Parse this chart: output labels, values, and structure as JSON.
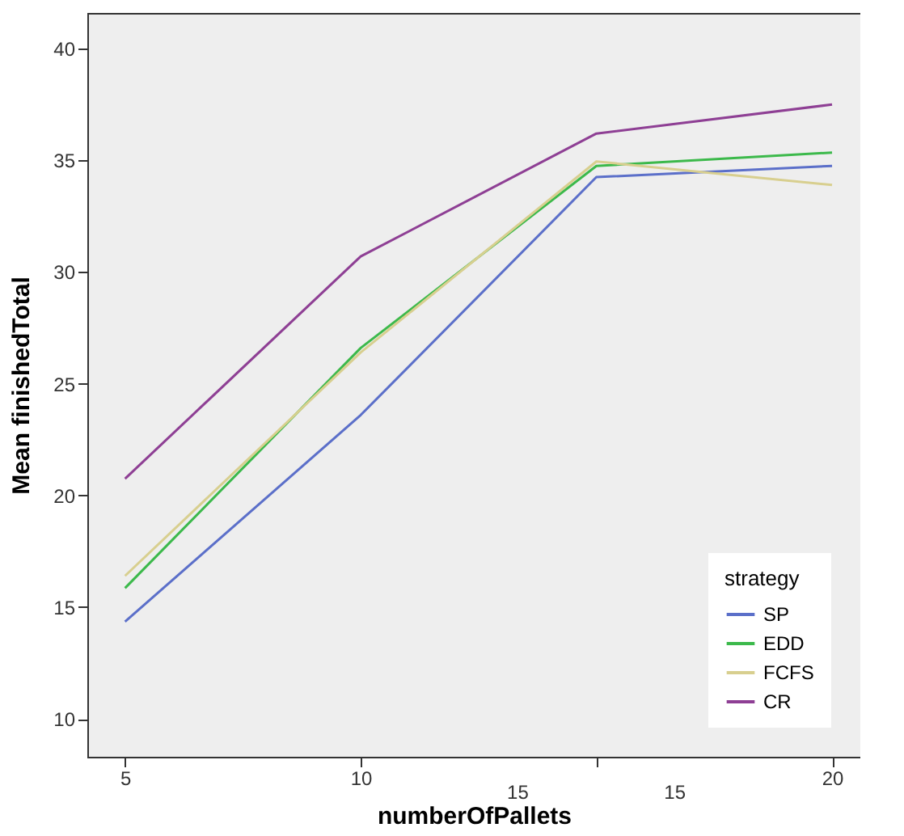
{
  "chart_data": {
    "type": "line",
    "xlabel": "numberOfPallets",
    "ylabel": "Mean finishedTotal",
    "legend_title": "strategy",
    "legend": "bottom right",
    "grid": false,
    "marker": "none",
    "line_style": "solid",
    "x": [
      5,
      10,
      15,
      20
    ],
    "xlim": [
      4.2,
      20.6
    ],
    "xticks": [
      5,
      10,
      {
        "value": 15,
        "label": null
      },
      20
    ],
    "annotations": [
      "15",
      "15"
    ],
    "ylim": [
      8.3,
      41.6
    ],
    "yticks": [
      10,
      15,
      20,
      25,
      30,
      35,
      40
    ],
    "series": [
      {
        "name": "SP",
        "color": "#5b6fc9",
        "values": [
          14.35,
          23.6,
          34.25,
          34.75
        ]
      },
      {
        "name": "EDD",
        "color": "#3cb94b",
        "values": [
          15.85,
          26.6,
          34.75,
          35.35
        ]
      },
      {
        "name": "FCFS",
        "color": "#d8cf8f",
        "values": [
          16.4,
          26.4,
          34.95,
          33.9
        ]
      },
      {
        "name": "CR",
        "color": "#8e3f94",
        "values": [
          20.75,
          30.7,
          36.2,
          37.5
        ]
      }
    ]
  }
}
